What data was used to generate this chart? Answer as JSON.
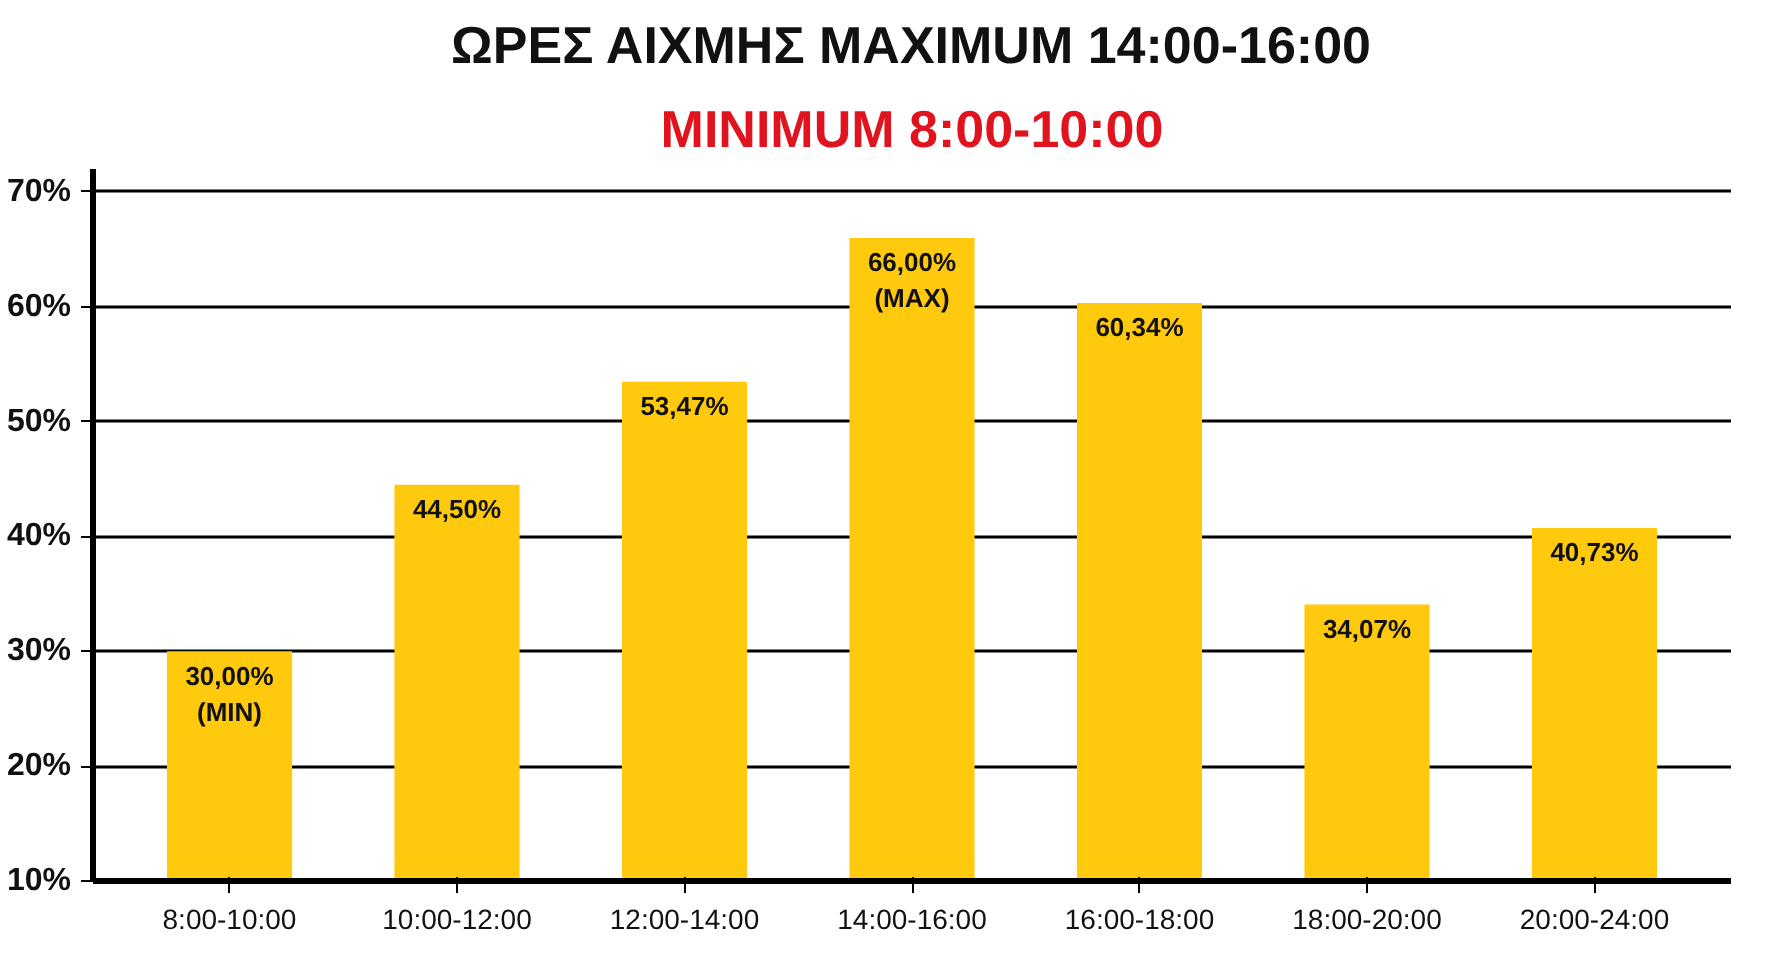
{
  "chart_data": {
    "type": "bar",
    "title": "ΩΡΕΣ ΑΙΧΜΗΣ MAXIMUM 14:00-16:00",
    "subtitle": "MINIMUM 8:00-10:00",
    "categories": [
      "8:00-10:00",
      "10:00-12:00",
      "12:00-14:00",
      "14:00-16:00",
      "16:00-18:00",
      "18:00-20:00",
      "20:00-24:00"
    ],
    "values": [
      30.0,
      44.5,
      53.47,
      66.0,
      60.34,
      34.07,
      40.73
    ],
    "value_labels": [
      "30,00%\n(MIN)",
      "44,50%",
      "53,47%",
      "66,00%\n(MAX)",
      "60,34%",
      "34,07%",
      "40,73%"
    ],
    "color": "#ffc90e",
    "ylim": [
      10,
      72
    ],
    "yticks": [
      {
        "value": 10,
        "label": "10%"
      },
      {
        "value": 20,
        "label": "20%"
      },
      {
        "value": 30,
        "label": "30%"
      },
      {
        "value": 40,
        "label": "40%"
      },
      {
        "value": 50,
        "label": "50%"
      },
      {
        "value": 60,
        "label": "60%"
      },
      {
        "value": 70,
        "label": "70%"
      }
    ],
    "grid": "y"
  }
}
